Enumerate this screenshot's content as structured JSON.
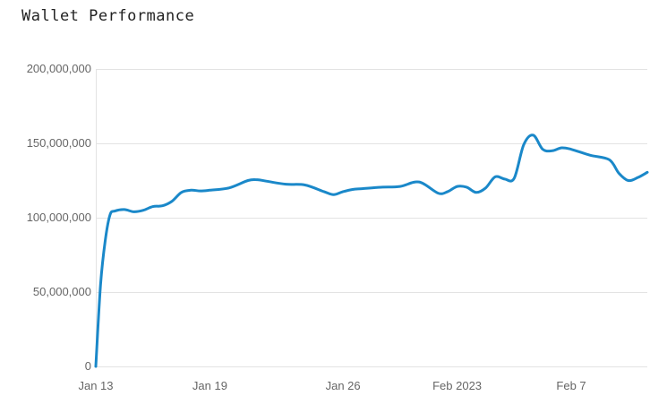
{
  "header": {
    "title": "Wallet Performance"
  },
  "chart_data": {
    "type": "line",
    "title": "Wallet Performance",
    "xlabel": "",
    "ylabel": "",
    "ylim": [
      0,
      200000000
    ],
    "grid": true,
    "line_color": "#1a88c9",
    "yticks": [
      0,
      50000000,
      100000000,
      150000000,
      200000000
    ],
    "ytick_labels": [
      "0",
      "50,000,000",
      "100,000,000",
      "150,000,000",
      "200,000,000"
    ],
    "xticks": [
      "2023-01-13",
      "2023-01-19",
      "2023-01-26",
      "2023-02-01",
      "2023-02-07"
    ],
    "xtick_labels": [
      "Jan 13",
      "Jan 19",
      "Jan 26",
      "Feb 2023",
      "Feb 7"
    ],
    "xlim": [
      "2023-01-13",
      "2023-02-11"
    ],
    "series": [
      {
        "x": [
          "2023-01-13",
          "2023-01-13T06:00",
          "2023-01-13T12:00",
          "2023-01-13T18:00",
          "2023-01-14",
          "2023-01-14T12:00",
          "2023-01-15",
          "2023-01-15T12:00",
          "2023-01-16",
          "2023-01-16T12:00",
          "2023-01-17",
          "2023-01-17T12:00",
          "2023-01-18",
          "2023-01-18T12:00",
          "2023-01-19",
          "2023-01-20",
          "2023-01-21",
          "2023-01-21T12:00",
          "2023-01-22",
          "2023-01-23",
          "2023-01-24",
          "2023-01-25",
          "2023-01-25T12:00",
          "2023-01-26",
          "2023-01-26T12:00",
          "2023-01-27",
          "2023-01-28",
          "2023-01-29",
          "2023-01-30",
          "2023-01-31",
          "2023-01-31T12:00",
          "2023-02-01",
          "2023-02-01T12:00",
          "2023-02-02",
          "2023-02-02T12:00",
          "2023-02-03",
          "2023-02-03T12:00",
          "2023-02-04",
          "2023-02-04T12:00",
          "2023-02-05",
          "2023-02-05T12:00",
          "2023-02-06",
          "2023-02-06T12:00",
          "2023-02-07",
          "2023-02-08",
          "2023-02-09",
          "2023-02-09T12:00",
          "2023-02-10",
          "2023-02-10T12:00",
          "2023-02-11"
        ],
        "values": [
          0,
          55000000,
          85000000,
          102000000,
          104500000,
          105500000,
          104000000,
          105000000,
          107500000,
          108000000,
          111000000,
          117000000,
          118500000,
          118000000,
          118500000,
          120000000,
          125000000,
          125500000,
          124500000,
          122500000,
          122000000,
          117500000,
          115500000,
          117500000,
          119000000,
          119500000,
          120500000,
          121000000,
          124000000,
          116500000,
          117500000,
          121000000,
          120500000,
          117000000,
          120000000,
          127500000,
          126000000,
          126500000,
          149000000,
          155500000,
          146000000,
          145000000,
          147000000,
          146000000,
          142000000,
          139000000,
          130000000,
          125000000,
          127000000,
          130500000
        ]
      }
    ]
  }
}
